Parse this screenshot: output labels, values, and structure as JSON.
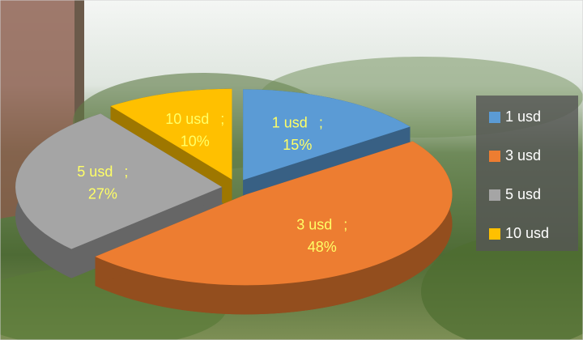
{
  "chart_data": {
    "type": "pie",
    "categories": [
      "1 usd",
      "3 usd",
      "5 usd",
      "10 usd"
    ],
    "values": [
      15,
      48,
      27,
      10
    ],
    "value_labels": [
      "15%",
      "48%",
      "27%",
      "10%"
    ],
    "separator": ";",
    "colors": [
      "#5b9bd5",
      "#ed7d31",
      "#a5a5a5",
      "#ffc000"
    ],
    "legend": "right"
  }
}
